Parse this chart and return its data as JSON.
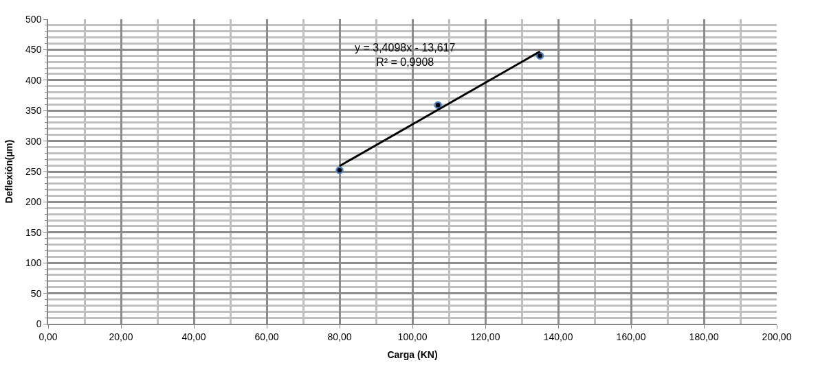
{
  "chart_data": {
    "type": "scatter",
    "xlabel": "Carga (KN)",
    "ylabel": "Deflexión(µm)",
    "series": [
      {
        "color": "#4f81bd",
        "marker": "circle",
        "x": [
          80,
          107,
          135
        ],
        "values": [
          252,
          359,
          440
        ]
      },
      {
        "type": "line",
        "color": "#000000",
        "marker": "none",
        "x": [
          80,
          135
        ],
        "values": [
          259,
          447
        ]
      }
    ],
    "annotations": [
      "y = 3,4098x - 13,617\nR² = 0,9908"
    ],
    "xlim": [
      0,
      200
    ],
    "ylim": [
      0,
      500
    ],
    "xticks": [
      {
        "value": 0,
        "label": "0,00"
      },
      {
        "value": 20,
        "label": "20,00"
      },
      {
        "value": 40,
        "label": "40,00"
      },
      {
        "value": 60,
        "label": "60,00"
      },
      {
        "value": 80,
        "label": "80,00"
      },
      {
        "value": 100,
        "label": "100,00"
      },
      {
        "value": 120,
        "label": "120,00"
      },
      {
        "value": 140,
        "label": "140,00"
      },
      {
        "value": 160,
        "label": "160,00"
      },
      {
        "value": 180,
        "label": "180,00"
      },
      {
        "value": 200,
        "label": "200,00"
      }
    ],
    "yticks": [
      0,
      50,
      100,
      150,
      200,
      250,
      300,
      350,
      400,
      450,
      500
    ],
    "grid": true
  }
}
